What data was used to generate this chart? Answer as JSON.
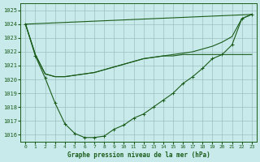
{
  "title": "Graphe pression niveau de la mer (hPa)",
  "bg_color": "#c8eaea",
  "grid_color": "#9dbfbf",
  "line_color": "#1a5c1a",
  "xlim": [
    -0.5,
    23.5
  ],
  "ylim": [
    1015.5,
    1025.5
  ],
  "yticks": [
    1016,
    1017,
    1018,
    1019,
    1020,
    1021,
    1022,
    1023,
    1024,
    1025
  ],
  "xticks": [
    0,
    1,
    2,
    3,
    4,
    5,
    6,
    7,
    8,
    9,
    10,
    11,
    12,
    13,
    14,
    15,
    16,
    17,
    18,
    19,
    20,
    21,
    22,
    23
  ],
  "line1_x": [
    0,
    1,
    2,
    3,
    4,
    5,
    6,
    7,
    8,
    9,
    10,
    11,
    12,
    13,
    14,
    15,
    16,
    17,
    18,
    19,
    20,
    21,
    22,
    23
  ],
  "line1_y": [
    1024.0,
    1021.7,
    1020.1,
    1018.3,
    1016.8,
    1016.1,
    1015.8,
    1015.8,
    1015.9,
    1016.4,
    1016.7,
    1017.2,
    1017.5,
    1018.0,
    1018.5,
    1019.0,
    1019.7,
    1020.2,
    1020.8,
    1021.5,
    1021.8,
    1022.5,
    1024.4,
    1024.7
  ],
  "line2_x": [
    0,
    1,
    2,
    3,
    4,
    5,
    6,
    7,
    8,
    9,
    10,
    11,
    12,
    13,
    14,
    15,
    16,
    17,
    18,
    19,
    20,
    21,
    22,
    23
  ],
  "line2_y": [
    1024.0,
    1021.8,
    1020.4,
    1020.2,
    1020.2,
    1020.3,
    1020.4,
    1020.5,
    1020.7,
    1020.9,
    1021.1,
    1021.3,
    1021.5,
    1021.6,
    1021.7,
    1021.7,
    1021.8,
    1021.8,
    1021.8,
    1021.8,
    1021.8,
    1021.8,
    1021.8,
    1021.8
  ],
  "line3_x": [
    0,
    23
  ],
  "line3_y": [
    1024.0,
    1024.7
  ],
  "line4_x": [
    0,
    1,
    2,
    3,
    4,
    5,
    6,
    7,
    8,
    9,
    10,
    11,
    12,
    13,
    14,
    15,
    16,
    17,
    18,
    19,
    20,
    21,
    22,
    23
  ],
  "line4_y": [
    1024.0,
    1021.8,
    1020.4,
    1020.2,
    1020.2,
    1020.3,
    1020.4,
    1020.5,
    1020.7,
    1020.9,
    1021.1,
    1021.3,
    1021.5,
    1021.6,
    1021.7,
    1021.8,
    1021.9,
    1022.0,
    1022.2,
    1022.4,
    1022.7,
    1023.1,
    1024.4,
    1024.7
  ]
}
